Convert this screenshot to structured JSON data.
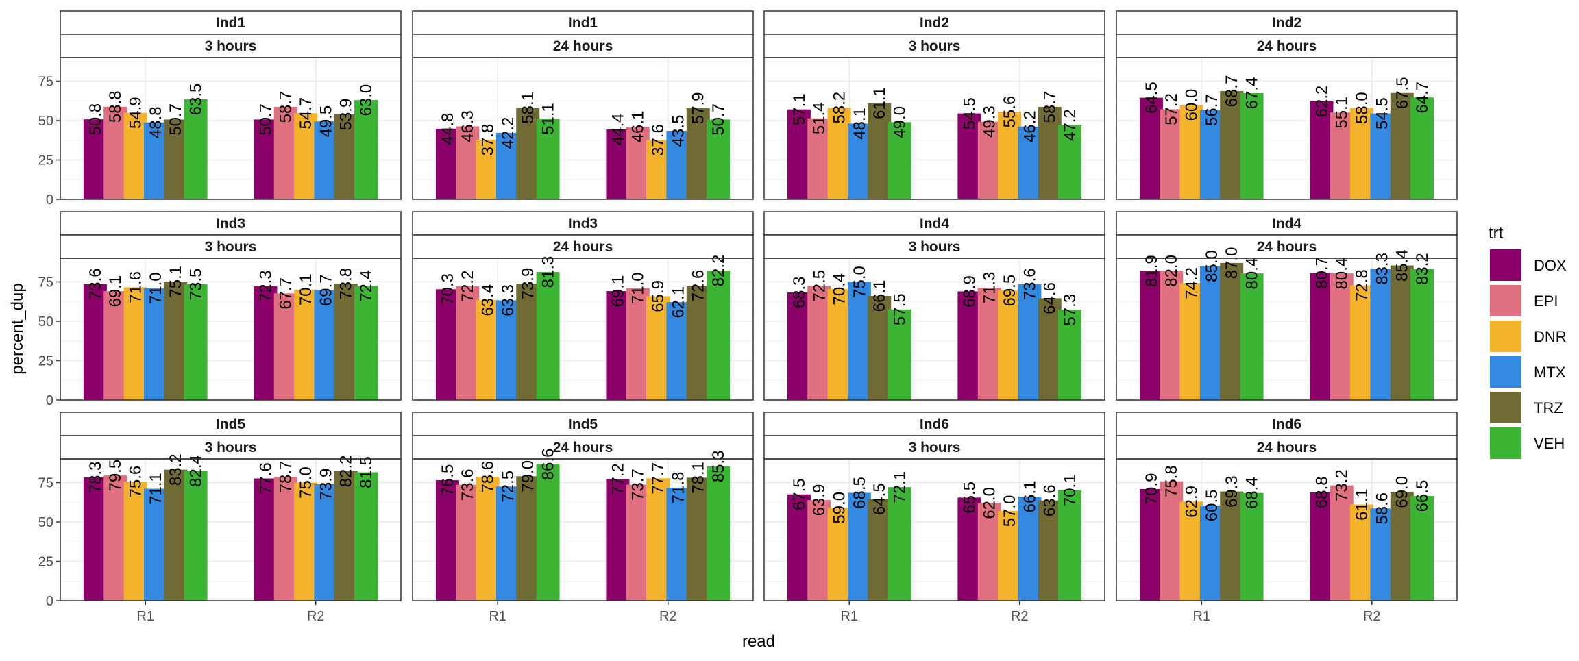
{
  "chart_data": {
    "type": "bar",
    "xlabel": "read",
    "ylabel": "percent_dup",
    "ylim": [
      0,
      90
    ],
    "yticks": [
      0,
      25,
      50,
      75
    ],
    "categories": [
      "R1",
      "R2"
    ],
    "grid": true,
    "legend": {
      "title": "trt",
      "position": "right",
      "items": [
        {
          "name": "DOX",
          "color": "#8b0069"
        },
        {
          "name": "EPI",
          "color": "#e07080"
        },
        {
          "name": "DNR",
          "color": "#f3b42b"
        },
        {
          "name": "MTX",
          "color": "#3388e0"
        },
        {
          "name": "TRZ",
          "color": "#706b34"
        },
        {
          "name": "VEH",
          "color": "#3db534"
        }
      ]
    },
    "panels": [
      {
        "ind": "Ind1",
        "time": "3 hours",
        "values": {
          "R1": [
            50.8,
            58.8,
            54.9,
            48.8,
            50.7,
            63.5
          ],
          "R2": [
            50.7,
            58.7,
            54.7,
            49.5,
            53.9,
            63.0
          ]
        }
      },
      {
        "ind": "Ind1",
        "time": "24 hours",
        "values": {
          "R1": [
            44.8,
            46.3,
            37.8,
            42.2,
            58.1,
            51.1
          ],
          "R2": [
            44.4,
            46.1,
            37.6,
            43.5,
            57.9,
            50.7
          ]
        }
      },
      {
        "ind": "Ind2",
        "time": "3 hours",
        "values": {
          "R1": [
            57.1,
            51.4,
            58.2,
            48.1,
            61.1,
            49.0
          ],
          "R2": [
            54.5,
            49.3,
            55.6,
            46.2,
            58.7,
            47.2
          ]
        }
      },
      {
        "ind": "Ind2",
        "time": "24 hours",
        "values": {
          "R1": [
            64.5,
            57.2,
            60.0,
            56.7,
            68.7,
            67.4
          ],
          "R2": [
            62.2,
            55.1,
            58.0,
            54.5,
            67.5,
            64.7
          ]
        }
      },
      {
        "ind": "Ind3",
        "time": "3 hours",
        "values": {
          "R1": [
            73.6,
            69.1,
            71.6,
            71.0,
            75.1,
            73.5
          ],
          "R2": [
            72.3,
            67.7,
            70.1,
            69.7,
            73.8,
            72.4
          ]
        }
      },
      {
        "ind": "Ind3",
        "time": "24 hours",
        "values": {
          "R1": [
            70.3,
            72.2,
            63.4,
            63.3,
            73.9,
            81.3
          ],
          "R2": [
            69.1,
            71.0,
            65.9,
            62.1,
            72.6,
            82.2
          ]
        }
      },
      {
        "ind": "Ind4",
        "time": "3 hours",
        "values": {
          "R1": [
            68.3,
            72.5,
            70.4,
            75.0,
            66.1,
            57.5
          ],
          "R2": [
            68.9,
            71.3,
            69.5,
            73.6,
            64.6,
            57.3
          ]
        }
      },
      {
        "ind": "Ind4",
        "time": "24 hours",
        "values": {
          "R1": [
            81.9,
            82.0,
            74.2,
            85.0,
            87.0,
            80.4
          ],
          "R2": [
            80.7,
            80.4,
            72.8,
            83.3,
            85.4,
            83.2
          ]
        }
      },
      {
        "ind": "Ind5",
        "time": "3 hours",
        "values": {
          "R1": [
            78.3,
            79.5,
            75.6,
            71.1,
            83.2,
            82.4
          ],
          "R2": [
            77.6,
            78.7,
            75.0,
            73.9,
            82.2,
            81.5
          ]
        }
      },
      {
        "ind": "Ind5",
        "time": "24 hours",
        "values": {
          "R1": [
            76.5,
            73.6,
            78.6,
            72.5,
            79.0,
            86.6
          ],
          "R2": [
            77.2,
            73.7,
            77.7,
            71.8,
            78.1,
            85.3
          ]
        }
      },
      {
        "ind": "Ind6",
        "time": "3 hours",
        "values": {
          "R1": [
            67.5,
            63.9,
            59.0,
            68.5,
            64.5,
            72.1
          ],
          "R2": [
            65.5,
            62.0,
            57.0,
            66.1,
            63.6,
            70.1
          ]
        }
      },
      {
        "ind": "Ind6",
        "time": "24 hours",
        "values": {
          "R1": [
            70.9,
            75.8,
            62.9,
            60.5,
            69.3,
            68.4
          ],
          "R2": [
            68.8,
            73.2,
            61.1,
            58.6,
            69.0,
            66.5
          ]
        }
      }
    ]
  }
}
